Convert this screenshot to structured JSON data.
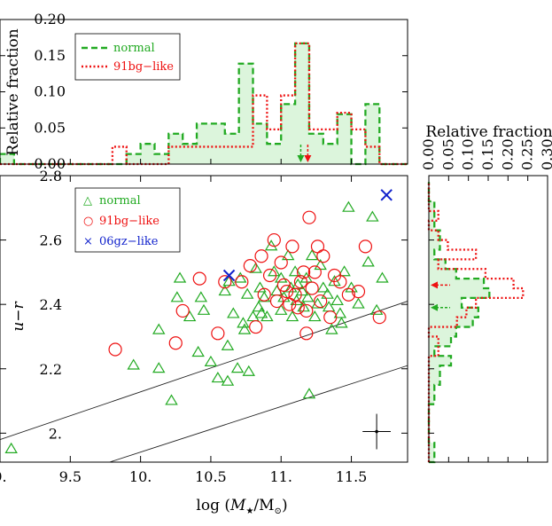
{
  "chart_data": [
    {
      "type": "step-histogram",
      "panel": "top",
      "ylabel": "Relative fraction",
      "xlim": [
        9.0,
        11.9
      ],
      "ylim": [
        0.0,
        0.2
      ],
      "yticks": [
        "0.00",
        "0.05",
        "0.10",
        "0.15",
        "0.20"
      ],
      "legend": {
        "placement": "top-left",
        "entries": [
          "normal",
          "91bg−like"
        ]
      },
      "bin_edges": [
        9.0,
        9.1,
        9.2,
        9.3,
        9.4,
        9.5,
        9.6,
        9.7,
        9.8,
        9.9,
        10.0,
        10.1,
        10.2,
        10.3,
        10.4,
        10.5,
        10.6,
        10.7,
        10.8,
        10.9,
        11.0,
        11.1,
        11.2,
        11.3,
        11.4,
        11.5,
        11.6,
        11.7,
        11.8,
        11.9
      ],
      "series": [
        {
          "name": "normal",
          "color": "#22aa22",
          "style": "dashed",
          "fill": "#dcf5dc",
          "values": [
            0.014,
            0.0,
            0.0,
            0.0,
            0.0,
            0.0,
            0.0,
            0.0,
            0.0,
            0.014,
            0.028,
            0.014,
            0.042,
            0.028,
            0.056,
            0.056,
            0.042,
            0.139,
            0.056,
            0.028,
            0.083,
            0.167,
            0.042,
            0.028,
            0.069,
            0.0,
            0.083,
            0.0,
            0.0
          ],
          "median": 11.14
        },
        {
          "name": "91bg−like",
          "color": "#ee1111",
          "style": "dotted",
          "fill": "none",
          "values": [
            0.0,
            0.0,
            0.0,
            0.0,
            0.0,
            0.0,
            0.0,
            0.0,
            0.024,
            0.0,
            0.0,
            0.0,
            0.024,
            0.024,
            0.024,
            0.024,
            0.024,
            0.024,
            0.095,
            0.048,
            0.095,
            0.167,
            0.048,
            0.048,
            0.071,
            0.048,
            0.024,
            0.0,
            0.0
          ],
          "median": 11.19
        }
      ]
    },
    {
      "type": "scatter",
      "panel": "main",
      "xlabel_prefix": "log (",
      "xlabel_mass": "M",
      "xlabel_star": "★",
      "xlabel_mid": "/M",
      "xlabel_sun": "⊙",
      "xlabel_suffix": ")",
      "ylabel_prefix": "u",
      "ylabel_minus": "−",
      "ylabel_suffix": "r",
      "xlim": [
        9.0,
        11.9
      ],
      "ylim": [
        1.91,
        2.8
      ],
      "xticks": [
        "9.",
        "9.5",
        "10.",
        "10.5",
        "11.",
        "11.5"
      ],
      "xtick_values": [
        9.0,
        9.5,
        10.0,
        10.5,
        11.0,
        11.5
      ],
      "yticks": [
        "2.",
        "2.2",
        "2.4",
        "2.6",
        "2.8"
      ],
      "ytick_values": [
        2.0,
        2.2,
        2.4,
        2.6,
        2.8
      ],
      "legend": {
        "placement": "top-left",
        "entries": [
          {
            "symbol": "△",
            "text": "normal",
            "color": "#22aa22"
          },
          {
            "symbol": "○",
            "text": "91bg−like",
            "color": "#ee1111"
          },
          {
            "symbol": "×",
            "text": "06gz−like",
            "color": "#1122cc"
          }
        ]
      },
      "lines": [
        {
          "from": [
            9.0,
            1.98
          ],
          "to": [
            11.9,
            2.41
          ]
        },
        {
          "from": [
            9.78,
            1.91
          ],
          "to": [
            11.9,
            2.21
          ]
        }
      ],
      "error_bar": {
        "x": 11.68,
        "y": 2.005,
        "xerr": 0.1,
        "yerr": 0.055
      },
      "series": [
        {
          "name": "normal",
          "marker": "triangle",
          "color": "#22aa22",
          "points": [
            [
              9.08,
              1.95
            ],
            [
              9.95,
              2.21
            ],
            [
              10.13,
              2.2
            ],
            [
              10.22,
              2.1
            ],
            [
              10.13,
              2.32
            ],
            [
              10.26,
              2.42
            ],
            [
              10.28,
              2.48
            ],
            [
              10.35,
              2.36
            ],
            [
              10.41,
              2.25
            ],
            [
              10.43,
              2.42
            ],
            [
              10.45,
              2.38
            ],
            [
              10.5,
              2.22
            ],
            [
              10.55,
              2.17
            ],
            [
              10.6,
              2.44
            ],
            [
              10.62,
              2.27
            ],
            [
              10.62,
              2.16
            ],
            [
              10.63,
              2.47
            ],
            [
              10.66,
              2.37
            ],
            [
              10.69,
              2.2
            ],
            [
              10.71,
              2.48
            ],
            [
              10.73,
              2.34
            ],
            [
              10.74,
              2.32
            ],
            [
              10.76,
              2.43
            ],
            [
              10.77,
              2.19
            ],
            [
              10.8,
              2.36
            ],
            [
              10.82,
              2.51
            ],
            [
              10.84,
              2.39
            ],
            [
              10.85,
              2.45
            ],
            [
              10.86,
              2.37
            ],
            [
              10.88,
              2.42
            ],
            [
              10.9,
              2.36
            ],
            [
              10.93,
              2.58
            ],
            [
              10.95,
              2.5
            ],
            [
              10.97,
              2.44
            ],
            [
              11.0,
              2.38
            ],
            [
              11.0,
              2.48
            ],
            [
              11.02,
              2.42
            ],
            [
              11.05,
              2.55
            ],
            [
              11.07,
              2.45
            ],
            [
              11.08,
              2.36
            ],
            [
              11.1,
              2.5
            ],
            [
              11.11,
              2.41
            ],
            [
              11.12,
              2.46
            ],
            [
              11.15,
              2.44
            ],
            [
              11.16,
              2.39
            ],
            [
              11.18,
              2.48
            ],
            [
              11.19,
              2.42
            ],
            [
              11.2,
              2.12
            ],
            [
              11.22,
              2.55
            ],
            [
              11.24,
              2.36
            ],
            [
              11.26,
              2.4
            ],
            [
              11.28,
              2.52
            ],
            [
              11.3,
              2.45
            ],
            [
              11.33,
              2.43
            ],
            [
              11.34,
              2.39
            ],
            [
              11.36,
              2.32
            ],
            [
              11.38,
              2.47
            ],
            [
              11.4,
              2.41
            ],
            [
              11.42,
              2.37
            ],
            [
              11.43,
              2.34
            ],
            [
              11.45,
              2.5
            ],
            [
              11.48,
              2.7
            ],
            [
              11.5,
              2.45
            ],
            [
              11.55,
              2.4
            ],
            [
              11.62,
              2.53
            ],
            [
              11.65,
              2.67
            ],
            [
              11.68,
              2.38
            ],
            [
              11.72,
              2.48
            ]
          ]
        },
        {
          "name": "91bg−like",
          "marker": "circle",
          "color": "#ee1111",
          "points": [
            [
              9.82,
              2.26
            ],
            [
              10.25,
              2.28
            ],
            [
              10.3,
              2.38
            ],
            [
              10.42,
              2.48
            ],
            [
              10.55,
              2.31
            ],
            [
              10.6,
              2.47
            ],
            [
              10.72,
              2.47
            ],
            [
              10.78,
              2.52
            ],
            [
              10.82,
              2.33
            ],
            [
              10.86,
              2.55
            ],
            [
              10.88,
              2.43
            ],
            [
              10.92,
              2.49
            ],
            [
              10.95,
              2.6
            ],
            [
              10.97,
              2.41
            ],
            [
              11.0,
              2.53
            ],
            [
              11.02,
              2.46
            ],
            [
              11.04,
              2.44
            ],
            [
              11.06,
              2.4
            ],
            [
              11.08,
              2.58
            ],
            [
              11.1,
              2.43
            ],
            [
              11.12,
              2.39
            ],
            [
              11.14,
              2.47
            ],
            [
              11.16,
              2.5
            ],
            [
              11.18,
              2.38
            ],
            [
              11.2,
              2.67
            ],
            [
              11.22,
              2.45
            ],
            [
              11.24,
              2.5
            ],
            [
              11.26,
              2.58
            ],
            [
              11.28,
              2.41
            ],
            [
              11.3,
              2.55
            ],
            [
              11.35,
              2.36
            ],
            [
              11.38,
              2.49
            ],
            [
              11.42,
              2.47
            ],
            [
              11.48,
              2.43
            ],
            [
              11.55,
              2.44
            ],
            [
              11.6,
              2.58
            ],
            [
              11.7,
              2.36
            ],
            [
              11.18,
              2.31
            ]
          ]
        },
        {
          "name": "06gz−like",
          "marker": "cross",
          "color": "#1122cc",
          "points": [
            [
              10.63,
              2.49
            ],
            [
              11.75,
              2.74
            ]
          ]
        }
      ]
    },
    {
      "type": "step-histogram",
      "panel": "right",
      "orientation": "horizontal",
      "xlabel": "Relative fraction",
      "xlim": [
        0.0,
        0.3
      ],
      "xticks": [
        "0.00",
        "0.05",
        "0.10",
        "0.15",
        "0.20",
        "0.25",
        "0.30"
      ],
      "xtick_values": [
        0.0,
        0.05,
        0.1,
        0.15,
        0.2,
        0.25,
        0.3
      ],
      "ylim": [
        1.91,
        2.8
      ],
      "bin_edges": [
        1.91,
        1.94,
        1.97,
        2.0,
        2.03,
        2.06,
        2.09,
        2.12,
        2.15,
        2.18,
        2.21,
        2.24,
        2.27,
        2.3,
        2.33,
        2.36,
        2.39,
        2.42,
        2.45,
        2.48,
        2.51,
        2.54,
        2.57,
        2.6,
        2.63,
        2.66,
        2.69,
        2.72,
        2.75,
        2.78
      ],
      "series": [
        {
          "name": "normal",
          "color": "#22aa22",
          "style": "dashed",
          "fill": "#dcf5dc",
          "values": [
            0.014,
            0.014,
            0.0,
            0.0,
            0.0,
            0.0,
            0.014,
            0.014,
            0.028,
            0.028,
            0.056,
            0.014,
            0.056,
            0.069,
            0.111,
            0.125,
            0.083,
            0.153,
            0.139,
            0.069,
            0.042,
            0.014,
            0.028,
            0.028,
            0.014,
            0.014,
            0.014,
            0.0,
            0.0
          ],
          "median": 2.39
        },
        {
          "name": "91bg−like",
          "color": "#ee1111",
          "style": "dotted",
          "fill": "none",
          "values": [
            0.0,
            0.0,
            0.0,
            0.0,
            0.0,
            0.0,
            0.0,
            0.0,
            0.0,
            0.0,
            0.0,
            0.024,
            0.024,
            0.0,
            0.071,
            0.095,
            0.119,
            0.238,
            0.214,
            0.143,
            0.024,
            0.119,
            0.048,
            0.024,
            0.0,
            0.024,
            0.0,
            0.0,
            0.0
          ],
          "median": 2.46
        }
      ]
    }
  ]
}
